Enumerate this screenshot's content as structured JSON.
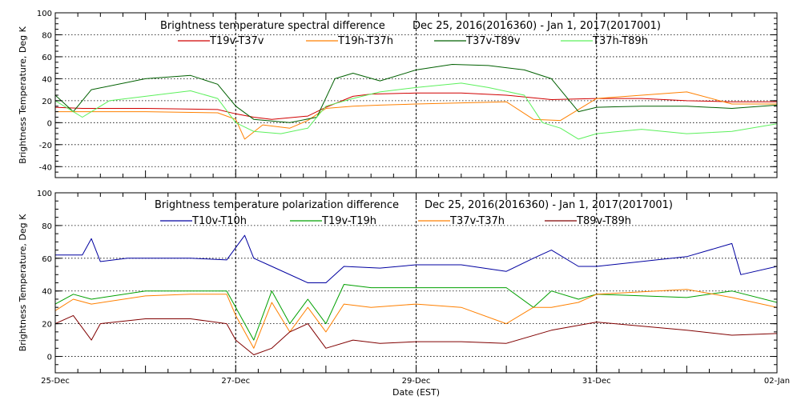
{
  "chart_data": [
    {
      "type": "line",
      "title": "Brightness temperature spectral difference",
      "date_range": "Dec 25, 2016(2016360) - Jan  1, 2017(2017001)",
      "ylabel": "Brightness Temperature, Deg K",
      "xlabel": "",
      "ylim": [
        -50,
        100
      ],
      "xlim": [
        0,
        8
      ],
      "yticks": [
        -40,
        -20,
        0,
        20,
        40,
        60,
        80,
        100
      ],
      "x_tick_labels": [],
      "x_units": "days since 25-Dec",
      "grid": true,
      "vertical_markers": [
        2,
        4,
        6
      ],
      "series": [
        {
          "name": "T19v-T37v",
          "color": "#d00000",
          "x": [
            0,
            0.3,
            1.0,
            1.8,
            2.0,
            2.2,
            2.4,
            2.8,
            3.0,
            3.3,
            3.5,
            4.0,
            4.5,
            5.0,
            5.5,
            6.0,
            6.5,
            7.0,
            7.5,
            8.0
          ],
          "y": [
            14,
            13,
            13,
            12,
            8,
            5,
            3,
            6,
            14,
            24,
            26,
            27,
            27,
            25,
            21,
            22,
            22,
            20,
            19,
            19
          ]
        },
        {
          "name": "T19h-T37h",
          "color": "#ff8000",
          "x": [
            0,
            0.3,
            1.0,
            1.8,
            2.0,
            2.1,
            2.3,
            2.6,
            2.8,
            3.0,
            3.3,
            3.6,
            4.0,
            4.5,
            5.0,
            5.3,
            5.6,
            6.0,
            6.5,
            7.0,
            7.5,
            8.0
          ],
          "y": [
            10,
            10,
            10,
            9,
            3,
            -15,
            -2,
            -5,
            2,
            13,
            15,
            16,
            17,
            18,
            19,
            3,
            2,
            22,
            25,
            28,
            17,
            17
          ]
        },
        {
          "name": "T37v-T89v",
          "color": "#006000",
          "x": [
            0,
            0.2,
            0.4,
            1.0,
            1.5,
            1.8,
            2.0,
            2.2,
            2.6,
            2.9,
            3.1,
            3.3,
            3.6,
            4.0,
            4.4,
            4.8,
            5.2,
            5.5,
            5.8,
            6.0,
            6.5,
            7.0,
            7.5,
            8.0
          ],
          "y": [
            25,
            10,
            30,
            40,
            43,
            35,
            15,
            3,
            0,
            5,
            40,
            45,
            38,
            48,
            53,
            52,
            48,
            40,
            10,
            14,
            15,
            15,
            13,
            16
          ]
        },
        {
          "name": "T37h-T89h",
          "color": "#5cf05c",
          "x": [
            0,
            0.3,
            0.6,
            1.0,
            1.5,
            1.8,
            2.0,
            2.2,
            2.5,
            2.8,
            3.0,
            3.3,
            3.6,
            4.0,
            4.5,
            4.8,
            5.2,
            5.4,
            5.6,
            5.8,
            6.0,
            6.5,
            7.0,
            7.5,
            8.0
          ],
          "y": [
            20,
            5,
            20,
            24,
            29,
            22,
            0,
            -8,
            -10,
            -5,
            15,
            22,
            28,
            32,
            36,
            32,
            25,
            0,
            -5,
            -15,
            -10,
            -6,
            -10,
            -8,
            -1
          ]
        }
      ]
    },
    {
      "type": "line",
      "title": "Brightness temperature polarization difference",
      "date_range": "Dec 25, 2016(2016360) - Jan  1, 2017(2017001)",
      "ylabel": "Brightness Temperature, Deg K",
      "xlabel": "Date (EST)",
      "ylim": [
        -10,
        100
      ],
      "xlim": [
        0,
        8
      ],
      "yticks": [
        0,
        20,
        40,
        60,
        80,
        100
      ],
      "x_tick_labels": [
        "25-Dec",
        "27-Dec",
        "29-Dec",
        "31-Dec",
        "02-Jan"
      ],
      "x_tick_values": [
        0,
        2,
        4,
        6,
        8
      ],
      "x_units": "days since 25-Dec",
      "grid": true,
      "vertical_markers": [
        2,
        4,
        6
      ],
      "series": [
        {
          "name": "T10v-T10h",
          "color": "#0000a0",
          "x": [
            0,
            0.3,
            0.4,
            0.5,
            0.8,
            1.5,
            1.9,
            2.1,
            2.2,
            2.4,
            2.8,
            3.0,
            3.2,
            3.6,
            4.0,
            4.5,
            5.0,
            5.3,
            5.5,
            5.8,
            6.0,
            7.0,
            7.5,
            7.6,
            8.0
          ],
          "y": [
            62,
            62,
            72,
            58,
            60,
            60,
            59,
            74,
            60,
            55,
            45,
            45,
            55,
            54,
            56,
            56,
            52,
            60,
            65,
            55,
            55,
            61,
            69,
            50,
            55
          ]
        },
        {
          "name": "T19v-T19h",
          "color": "#00a000",
          "x": [
            0,
            0.2,
            0.4,
            1.0,
            1.5,
            1.9,
            2.0,
            2.2,
            2.4,
            2.6,
            2.8,
            3.0,
            3.2,
            3.5,
            4.0,
            4.5,
            5.0,
            5.3,
            5.5,
            5.8,
            6.0,
            7.0,
            7.5,
            8.0
          ],
          "y": [
            32,
            38,
            35,
            40,
            40,
            40,
            30,
            10,
            40,
            20,
            35,
            20,
            44,
            42,
            42,
            42,
            42,
            30,
            40,
            35,
            38,
            36,
            40,
            33
          ]
        },
        {
          "name": "T37v-T37h",
          "color": "#ff8000",
          "x": [
            0,
            0.2,
            0.4,
            1.0,
            1.5,
            1.9,
            2.0,
            2.2,
            2.4,
            2.6,
            2.8,
            3.0,
            3.2,
            3.5,
            4.0,
            4.5,
            5.0,
            5.3,
            5.5,
            5.8,
            6.0,
            7.0,
            7.5,
            8.0
          ],
          "y": [
            28,
            35,
            32,
            37,
            38,
            38,
            25,
            5,
            33,
            15,
            30,
            15,
            32,
            30,
            32,
            30,
            20,
            30,
            30,
            33,
            38,
            41,
            36,
            30
          ]
        },
        {
          "name": "T89v-T89h",
          "color": "#800000",
          "x": [
            0,
            0.2,
            0.4,
            0.5,
            1.0,
            1.5,
            1.9,
            2.0,
            2.2,
            2.4,
            2.6,
            2.8,
            3.0,
            3.3,
            3.6,
            4.0,
            4.5,
            5.0,
            5.5,
            6.0,
            7.0,
            7.5,
            8.0
          ],
          "y": [
            20,
            25,
            10,
            20,
            23,
            23,
            20,
            10,
            1,
            5,
            15,
            20,
            5,
            10,
            8,
            9,
            9,
            8,
            16,
            21,
            16,
            13,
            14
          ]
        }
      ]
    }
  ]
}
